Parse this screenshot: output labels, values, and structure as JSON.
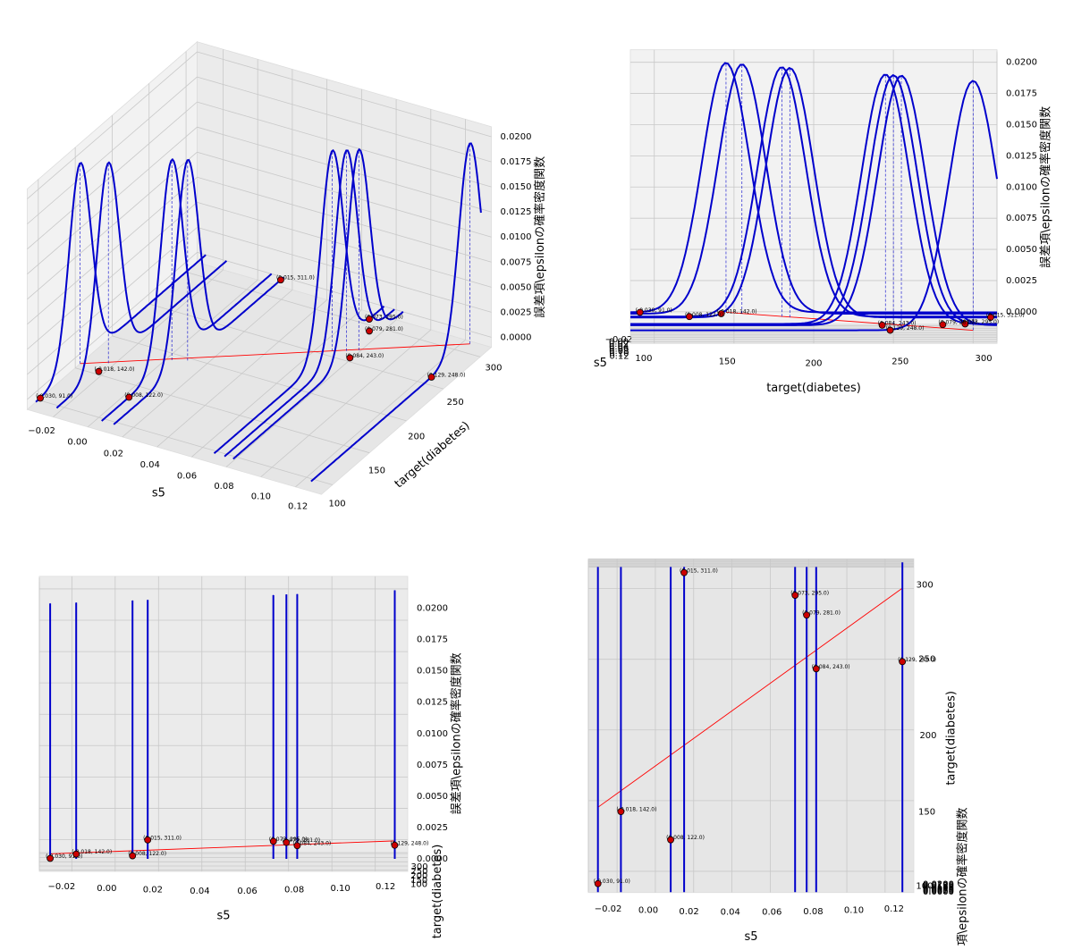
{
  "chart_data": {
    "type": "density3d",
    "views": [
      {
        "elev": 30,
        "azim": -60
      },
      {
        "elev": 3,
        "azim": 0
      },
      {
        "elev": 3,
        "azim": -90
      },
      {
        "elev": 88,
        "azim": -90
      }
    ],
    "xlabel": "s5",
    "ylabel": "target(diabetes)",
    "zlabel": "誤差項\\epsilonの確率密度関数",
    "xlim": [
      -0.035,
      0.135
    ],
    "ylim": [
      85,
      315
    ],
    "zlim": [
      -0.001,
      0.021
    ],
    "xticks": [
      {
        "value": -0.02,
        "label": "−0.02"
      },
      {
        "value": 0,
        "label": "0.00"
      },
      {
        "value": 0.02,
        "label": "0.02"
      },
      {
        "value": 0.04,
        "label": "0.04"
      },
      {
        "value": 0.06,
        "label": "0.06"
      },
      {
        "value": 0.08,
        "label": "0.08"
      },
      {
        "value": 0.1,
        "label": "0.10"
      },
      {
        "value": 0.12,
        "label": "0.12"
      }
    ],
    "yticks": [
      100,
      150,
      200,
      250,
      300
    ],
    "zticks": [
      {
        "value": 0,
        "label": "0.0000"
      },
      {
        "value": 0.0025,
        "label": "0.0025"
      },
      {
        "value": 0.005,
        "label": "0.0050"
      },
      {
        "value": 0.0075,
        "label": "0.0075"
      },
      {
        "value": 0.01,
        "label": "0.0100"
      },
      {
        "value": 0.0125,
        "label": "0.0125"
      },
      {
        "value": 0.015,
        "label": "0.0150"
      },
      {
        "value": 0.0175,
        "label": "0.0175"
      },
      {
        "value": 0.02,
        "label": "0.0200"
      }
    ],
    "points": {
      "color": "#cc0000",
      "x": [
        -0.03,
        -0.018,
        0.008,
        0.015,
        0.073,
        0.079,
        0.084,
        0.129
      ],
      "y": [
        91,
        142,
        122,
        311,
        295,
        281,
        243,
        248
      ],
      "value_labels": [
        "(-0.030, 91.0)",
        "(-0.018, 142.0)",
        "(0.008, 122.0)",
        "(0.015, 311.0)",
        "(0.073, 295.0)",
        "(0.079, 281.0)",
        "(0.084, 243.0)",
        "(0.129, 248.0)"
      ]
    },
    "curves": {
      "color": "#0000cc",
      "peak": 0.02,
      "sd": 15,
      "centers": [
        145,
        155,
        180,
        185,
        245,
        250,
        255,
        300
      ]
    },
    "regression": {
      "color": "#ff0000",
      "x": [
        -0.03,
        0.129
      ],
      "y": [
        145,
        300
      ]
    }
  }
}
